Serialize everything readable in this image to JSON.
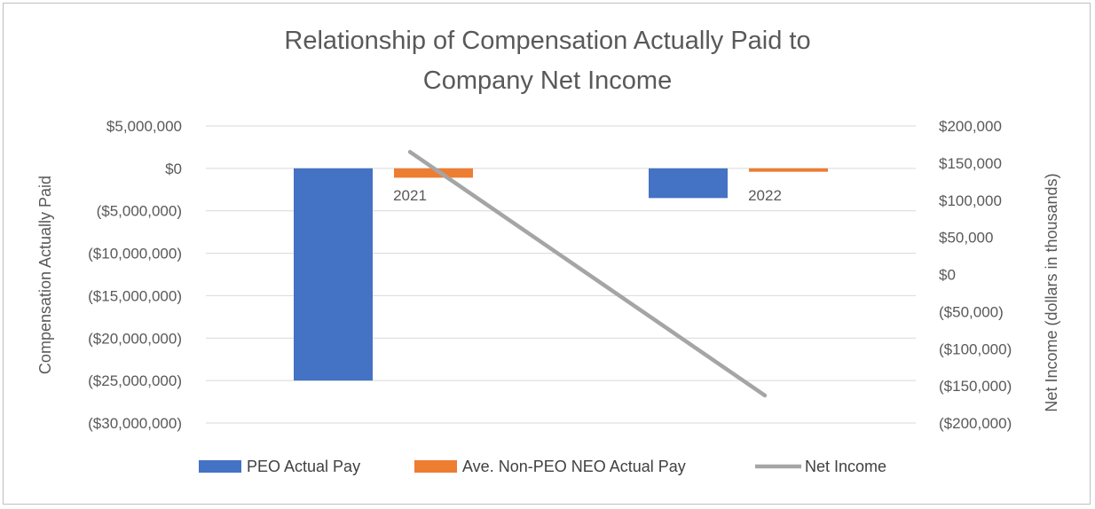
{
  "chart_data": {
    "type": "bar",
    "title_lines": [
      "Relationship of Compensation Actually Paid to",
      "Company Net Income"
    ],
    "categories": [
      "2021",
      "2022"
    ],
    "ylabel": "Compensation Actually Paid",
    "y2label": "Net Income (dollars in thousands)",
    "ylim": [
      -30000000,
      5000000
    ],
    "y2lim": [
      -200000,
      200000
    ],
    "yticks": [
      5000000,
      0,
      -5000000,
      -10000000,
      -15000000,
      -20000000,
      -25000000,
      -30000000
    ],
    "ytick_labels": [
      "$5,000,000",
      "$0",
      "($5,000,000)",
      "($10,000,000)",
      "($15,000,000)",
      "($20,000,000)",
      "($25,000,000)",
      "($30,000,000)"
    ],
    "y2ticks": [
      200000,
      150000,
      100000,
      50000,
      0,
      -50000,
      -100000,
      -150000,
      -200000
    ],
    "y2tick_labels": [
      "$200,000",
      "$150,000",
      "$100,000",
      "$50,000",
      "$0",
      "($50,000)",
      "($100,000)",
      "($150,000)",
      "($200,000)"
    ],
    "grid": true,
    "legend_position": "bottom",
    "series": [
      {
        "name": "PEO Actual Pay",
        "type": "bar",
        "axis": "left",
        "color": "#4472c4",
        "values": [
          -25000000,
          -3500000
        ]
      },
      {
        "name": "Ave. Non-PEO NEO Actual Pay",
        "type": "bar",
        "axis": "left",
        "color": "#ed7d31",
        "values": [
          -1100000,
          -400000
        ]
      },
      {
        "name": "Net Income",
        "type": "line",
        "axis": "right",
        "color": "#a5a5a5",
        "values": [
          165000,
          -163000
        ]
      }
    ]
  }
}
